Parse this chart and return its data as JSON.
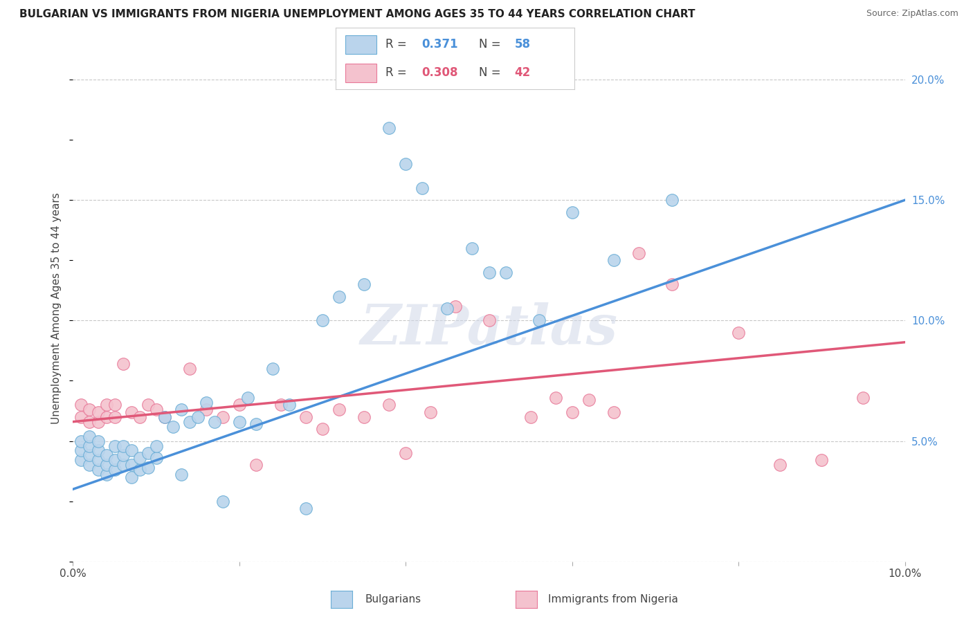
{
  "title": "BULGARIAN VS IMMIGRANTS FROM NIGERIA UNEMPLOYMENT AMONG AGES 35 TO 44 YEARS CORRELATION CHART",
  "source": "Source: ZipAtlas.com",
  "ylabel": "Unemployment Among Ages 35 to 44 years",
  "xlim": [
    0.0,
    0.1
  ],
  "ylim": [
    0.0,
    0.21
  ],
  "y_ticks": [
    0.0,
    0.05,
    0.1,
    0.15,
    0.2
  ],
  "y_tick_labels_right": [
    "",
    "5.0%",
    "10.0%",
    "15.0%",
    "20.0%"
  ],
  "blue_color": "#bad4ec",
  "blue_edge": "#6aaed6",
  "blue_line": "#4a90d9",
  "pink_color": "#f4c2ce",
  "pink_edge": "#e87898",
  "pink_line": "#e05878",
  "bg_color": "#ffffff",
  "grid_color": "#c8c8c8",
  "watermark": "ZIPatlas",
  "blue_intercept": 0.03,
  "blue_slope": 1.2,
  "pink_intercept": 0.058,
  "pink_slope": 0.33,
  "blue_x": [
    0.001,
    0.001,
    0.001,
    0.002,
    0.002,
    0.002,
    0.002,
    0.003,
    0.003,
    0.003,
    0.003,
    0.004,
    0.004,
    0.004,
    0.005,
    0.005,
    0.005,
    0.006,
    0.006,
    0.006,
    0.007,
    0.007,
    0.007,
    0.008,
    0.008,
    0.009,
    0.009,
    0.01,
    0.01,
    0.011,
    0.012,
    0.013,
    0.013,
    0.014,
    0.015,
    0.016,
    0.017,
    0.018,
    0.02,
    0.021,
    0.022,
    0.024,
    0.026,
    0.028,
    0.03,
    0.032,
    0.035,
    0.038,
    0.04,
    0.042,
    0.045,
    0.048,
    0.05,
    0.052,
    0.056,
    0.06,
    0.065,
    0.072
  ],
  "blue_y": [
    0.042,
    0.046,
    0.05,
    0.04,
    0.044,
    0.048,
    0.052,
    0.038,
    0.042,
    0.046,
    0.05,
    0.036,
    0.04,
    0.044,
    0.038,
    0.042,
    0.048,
    0.04,
    0.044,
    0.048,
    0.035,
    0.04,
    0.046,
    0.038,
    0.043,
    0.039,
    0.045,
    0.043,
    0.048,
    0.06,
    0.056,
    0.063,
    0.036,
    0.058,
    0.06,
    0.066,
    0.058,
    0.025,
    0.058,
    0.068,
    0.057,
    0.08,
    0.065,
    0.022,
    0.1,
    0.11,
    0.115,
    0.18,
    0.165,
    0.155,
    0.105,
    0.13,
    0.12,
    0.12,
    0.1,
    0.145,
    0.125,
    0.15
  ],
  "pink_x": [
    0.001,
    0.001,
    0.002,
    0.002,
    0.003,
    0.003,
    0.004,
    0.004,
    0.005,
    0.005,
    0.006,
    0.007,
    0.008,
    0.009,
    0.01,
    0.011,
    0.014,
    0.016,
    0.018,
    0.02,
    0.022,
    0.025,
    0.028,
    0.03,
    0.032,
    0.035,
    0.038,
    0.04,
    0.043,
    0.046,
    0.05,
    0.055,
    0.058,
    0.06,
    0.062,
    0.065,
    0.068,
    0.072,
    0.08,
    0.085,
    0.09,
    0.095
  ],
  "pink_y": [
    0.06,
    0.065,
    0.058,
    0.063,
    0.058,
    0.062,
    0.06,
    0.065,
    0.06,
    0.065,
    0.082,
    0.062,
    0.06,
    0.065,
    0.063,
    0.06,
    0.08,
    0.063,
    0.06,
    0.065,
    0.04,
    0.065,
    0.06,
    0.055,
    0.063,
    0.06,
    0.065,
    0.045,
    0.062,
    0.106,
    0.1,
    0.06,
    0.068,
    0.062,
    0.067,
    0.062,
    0.128,
    0.115,
    0.095,
    0.04,
    0.042,
    0.068
  ]
}
